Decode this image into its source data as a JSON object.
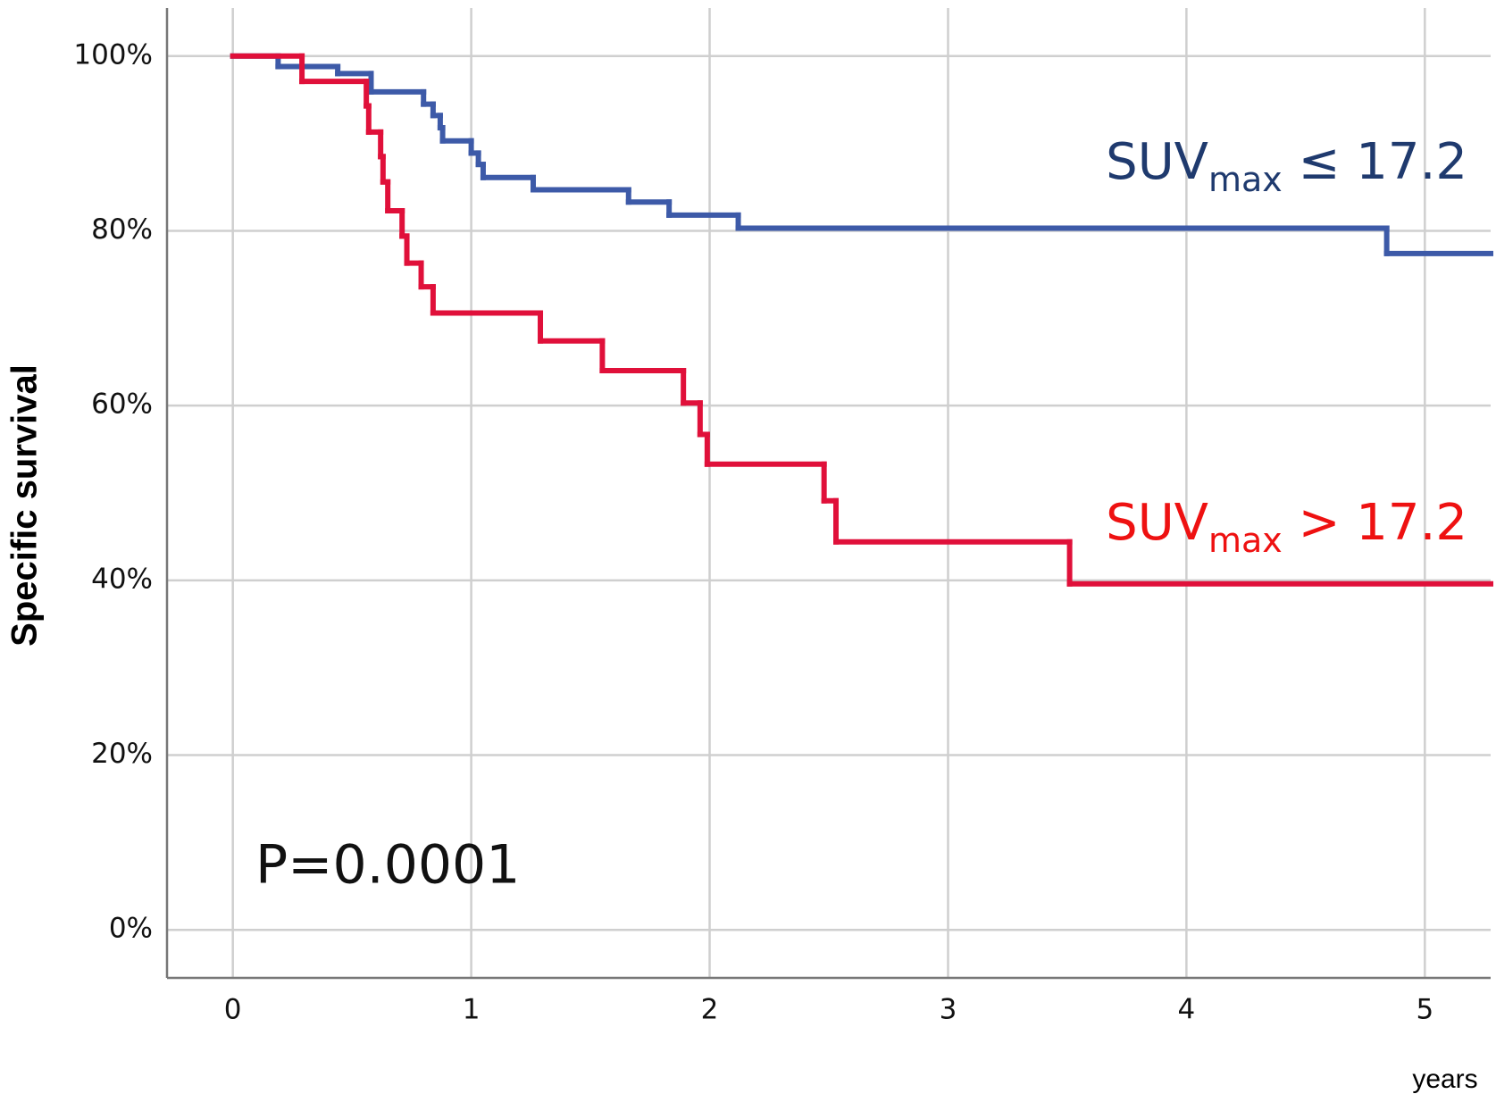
{
  "chart_data": {
    "type": "step",
    "y_label": "Specific survival",
    "x_label": "years",
    "annotation": "P=0.0001",
    "xlim": [
      -0.276,
      5.276
    ],
    "ylim": [
      -5.5,
      105.5
    ],
    "xticks": [
      0,
      1,
      2,
      3,
      4,
      5
    ],
    "yticks": [
      {
        "value": 0,
        "label": "0%"
      },
      {
        "value": 20,
        "label": "20%"
      },
      {
        "value": 40,
        "label": "40%"
      },
      {
        "value": 60,
        "label": "60%"
      },
      {
        "value": 80,
        "label": "80%"
      },
      {
        "value": 100,
        "label": "100%"
      }
    ],
    "grid": true,
    "series": [
      {
        "label": {
          "main": "SUV",
          "sub": "max",
          "rest": " ≤ 17.2"
        },
        "color": "#3d5aa8",
        "label_color": "#1f3a6e",
        "x": [
          0,
          0.19,
          0.44,
          0.58,
          0.8,
          0.84,
          0.87,
          0.88,
          1.0,
          1.03,
          1.05,
          1.26,
          1.66,
          1.83,
          2.12,
          4.84
        ],
        "values": [
          100,
          98.8,
          98.0,
          95.9,
          94.5,
          93.2,
          91.8,
          90.3,
          88.9,
          87.6,
          86.1,
          84.7,
          83.3,
          81.8,
          80.3,
          77.4
        ]
      },
      {
        "label": {
          "main": "SUV",
          "sub": "max",
          "rest": " > 17.2"
        },
        "color": "#e0103a",
        "label_color": "#ee1111",
        "x": [
          0,
          0.29,
          0.56,
          0.57,
          0.62,
          0.63,
          0.65,
          0.71,
          0.73,
          0.79,
          0.84,
          1.29,
          1.55,
          1.89,
          1.96,
          1.99,
          2.48,
          2.53,
          3.51
        ],
        "values": [
          100,
          97.1,
          94.3,
          91.3,
          88.5,
          85.6,
          82.3,
          79.4,
          76.3,
          73.6,
          70.6,
          67.4,
          64.0,
          60.3,
          56.7,
          53.3,
          49.1,
          44.4,
          39.6
        ]
      }
    ]
  }
}
